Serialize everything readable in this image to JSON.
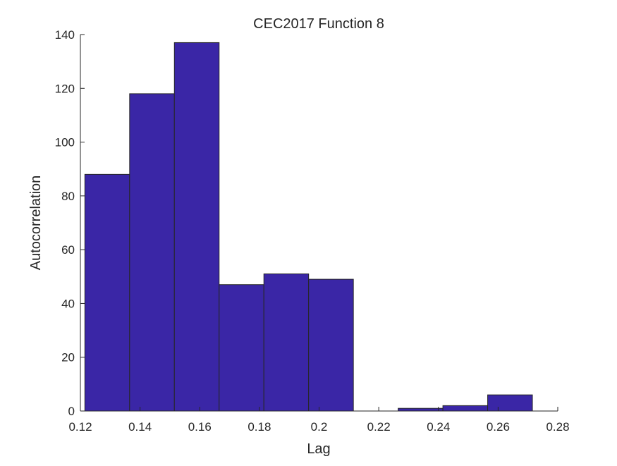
{
  "chart_data": {
    "type": "bar",
    "title": "CEC2017 Function 8",
    "xlabel": "Lag",
    "ylabel": "Autocorrelation",
    "xlim": [
      0.12,
      0.28
    ],
    "ylim": [
      0,
      140
    ],
    "xticks": [
      "0.12",
      "0.14",
      "0.16",
      "0.18",
      "0.2",
      "0.22",
      "0.24",
      "0.26",
      "0.28"
    ],
    "yticks": [
      "0",
      "20",
      "40",
      "60",
      "80",
      "100",
      "120",
      "140"
    ],
    "bin_edges": [
      0.1215,
      0.1365,
      0.1515,
      0.1665,
      0.1815,
      0.1965,
      0.2115,
      0.2265,
      0.2415,
      0.2565,
      0.2715
    ],
    "values": [
      88,
      118,
      137,
      47,
      51,
      49,
      0,
      1,
      2,
      6
    ],
    "bar_color": "#3a26a6",
    "edge_color": "#262626",
    "grid": false,
    "legend": "none"
  }
}
